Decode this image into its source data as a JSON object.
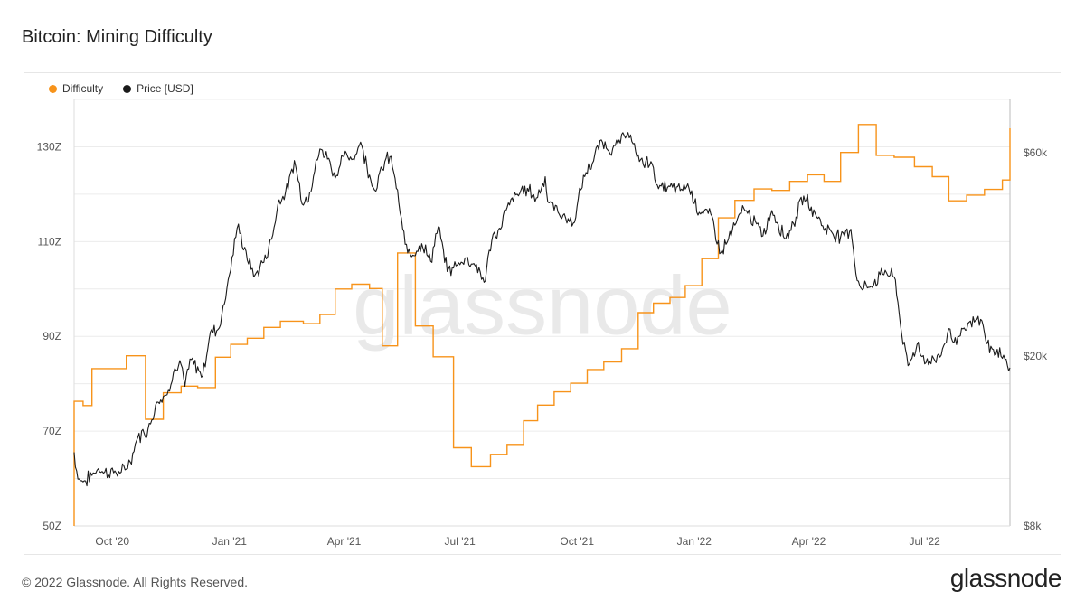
{
  "page": {
    "title": "Bitcoin: Mining Difficulty",
    "footer": "© 2022 Glassnode. All Rights Reserved.",
    "brand": "glassnode",
    "watermark": "glassnode"
  },
  "colors": {
    "difficulty": "#f7931a",
    "price": "#1a1a1a",
    "grid": "#ececec",
    "axis_text": "#555555",
    "watermark": "#e9e9e9"
  },
  "chart_data": {
    "type": "line",
    "title": "Bitcoin: Mining Difficulty",
    "legend_position": "top-left",
    "grid": true,
    "x_start": "2020-09-01",
    "x_end": "2022-09-06",
    "x_ticks": [
      {
        "date": "2020-10-01",
        "label": "Oct '20"
      },
      {
        "date": "2021-01-01",
        "label": "Jan '21"
      },
      {
        "date": "2021-04-01",
        "label": "Apr '21"
      },
      {
        "date": "2021-07-01",
        "label": "Jul '21"
      },
      {
        "date": "2021-10-01",
        "label": "Oct '21"
      },
      {
        "date": "2022-01-01",
        "label": "Jan '22"
      },
      {
        "date": "2022-04-01",
        "label": "Apr '22"
      },
      {
        "date": "2022-07-01",
        "label": "Jul '22"
      }
    ],
    "y_left": {
      "min": 50,
      "max": 140,
      "ticks": [
        {
          "value": 50,
          "label": "50Z"
        },
        {
          "value": 70,
          "label": "70Z"
        },
        {
          "value": 90,
          "label": "90Z"
        },
        {
          "value": 110,
          "label": "110Z"
        },
        {
          "value": 130,
          "label": "130Z"
        }
      ]
    },
    "y_right": {
      "scale": "log",
      "min": 8000,
      "max": 80000,
      "ticks": [
        {
          "value": 8000,
          "label": "$8k"
        },
        {
          "value": 20000,
          "label": "$20k"
        },
        {
          "value": 60000,
          "label": "$60k"
        }
      ]
    },
    "series": [
      {
        "name": "Difficulty",
        "axis": "left",
        "step": true,
        "points": [
          [
            "2020-09-01",
            76.3
          ],
          [
            "2020-09-08",
            75.4
          ],
          [
            "2020-09-15",
            83.2
          ],
          [
            "2020-10-01",
            83.2
          ],
          [
            "2020-10-12",
            85.9
          ],
          [
            "2020-10-27",
            72.5
          ],
          [
            "2020-11-10",
            78.1
          ],
          [
            "2020-11-24",
            79.5
          ],
          [
            "2020-12-07",
            79.2
          ],
          [
            "2020-12-21",
            85.6
          ],
          [
            "2021-01-02",
            88.3
          ],
          [
            "2021-01-15",
            89.6
          ],
          [
            "2021-01-28",
            91.9
          ],
          [
            "2021-02-10",
            93.2
          ],
          [
            "2021-02-28",
            92.7
          ],
          [
            "2021-03-13",
            94.6
          ],
          [
            "2021-03-25",
            100.0
          ],
          [
            "2021-04-07",
            101.0
          ],
          [
            "2021-04-21",
            100.1
          ],
          [
            "2021-05-01",
            88.0
          ],
          [
            "2021-05-13",
            107.6
          ],
          [
            "2021-05-27",
            92.2
          ],
          [
            "2021-06-10",
            85.7
          ],
          [
            "2021-06-26",
            66.5
          ],
          [
            "2021-07-10",
            62.5
          ],
          [
            "2021-07-25",
            65.1
          ],
          [
            "2021-08-07",
            67.2
          ],
          [
            "2021-08-20",
            72.2
          ],
          [
            "2021-08-31",
            75.5
          ],
          [
            "2021-09-13",
            78.3
          ],
          [
            "2021-09-26",
            80.1
          ],
          [
            "2021-10-09",
            83.0
          ],
          [
            "2021-10-22",
            84.6
          ],
          [
            "2021-11-05",
            87.4
          ],
          [
            "2021-11-18",
            95.0
          ],
          [
            "2021-11-30",
            97.0
          ],
          [
            "2021-12-13",
            98.2
          ],
          [
            "2021-12-25",
            100.7
          ],
          [
            "2022-01-07",
            106.4
          ],
          [
            "2022-01-20",
            115.0
          ],
          [
            "2022-02-02",
            118.7
          ],
          [
            "2022-02-17",
            121.1
          ],
          [
            "2022-03-03",
            120.8
          ],
          [
            "2022-03-17",
            122.7
          ],
          [
            "2022-03-31",
            124.1
          ],
          [
            "2022-04-13",
            122.7
          ],
          [
            "2022-04-26",
            128.8
          ],
          [
            "2022-05-10",
            134.7
          ],
          [
            "2022-05-24",
            128.2
          ],
          [
            "2022-06-07",
            127.8
          ],
          [
            "2022-06-23",
            125.8
          ],
          [
            "2022-07-07",
            123.7
          ],
          [
            "2022-07-20",
            118.6
          ],
          [
            "2022-08-03",
            119.8
          ],
          [
            "2022-08-17",
            121.0
          ],
          [
            "2022-08-31",
            123.0
          ],
          [
            "2022-09-06",
            133.9
          ]
        ]
      },
      {
        "name": "Price [USD]",
        "axis": "right",
        "step": false,
        "points": [
          [
            "2020-09-01",
            11900
          ],
          [
            "2020-09-04",
            10300
          ],
          [
            "2020-09-10",
            10200
          ],
          [
            "2020-09-20",
            10900
          ],
          [
            "2020-09-25",
            10700
          ],
          [
            "2020-10-08",
            10700
          ],
          [
            "2020-10-15",
            11300
          ],
          [
            "2020-10-21",
            12900
          ],
          [
            "2020-10-29",
            13500
          ],
          [
            "2020-11-05",
            15600
          ],
          [
            "2020-11-12",
            16200
          ],
          [
            "2020-11-18",
            18300
          ],
          [
            "2020-11-24",
            19100
          ],
          [
            "2020-11-27",
            17000
          ],
          [
            "2020-12-01",
            19700
          ],
          [
            "2020-12-11",
            18000
          ],
          [
            "2020-12-17",
            22800
          ],
          [
            "2020-12-24",
            23300
          ],
          [
            "2020-12-30",
            28900
          ],
          [
            "2021-01-08",
            40800
          ],
          [
            "2021-01-12",
            35500
          ],
          [
            "2021-01-21",
            31000
          ],
          [
            "2021-01-28",
            33200
          ],
          [
            "2021-02-03",
            37600
          ],
          [
            "2021-02-09",
            46500
          ],
          [
            "2021-02-16",
            49200
          ],
          [
            "2021-02-21",
            57500
          ],
          [
            "2021-02-28",
            45200
          ],
          [
            "2021-03-05",
            48500
          ],
          [
            "2021-03-13",
            61200
          ],
          [
            "2021-03-20",
            58200
          ],
          [
            "2021-03-25",
            52300
          ],
          [
            "2021-04-01",
            58800
          ],
          [
            "2021-04-08",
            58000
          ],
          [
            "2021-04-14",
            63500
          ],
          [
            "2021-04-22",
            51700
          ],
          [
            "2021-04-25",
            49000
          ],
          [
            "2021-05-03",
            57200
          ],
          [
            "2021-05-08",
            58800
          ],
          [
            "2021-05-12",
            49500
          ],
          [
            "2021-05-19",
            36600
          ],
          [
            "2021-05-23",
            34600
          ],
          [
            "2021-06-01",
            36700
          ],
          [
            "2021-06-08",
            33400
          ],
          [
            "2021-06-14",
            40200
          ],
          [
            "2021-06-21",
            31600
          ],
          [
            "2021-06-26",
            32200
          ],
          [
            "2021-07-05",
            34000
          ],
          [
            "2021-07-14",
            32800
          ],
          [
            "2021-07-20",
            29800
          ],
          [
            "2021-07-26",
            37300
          ],
          [
            "2021-08-01",
            39900
          ],
          [
            "2021-08-07",
            44600
          ],
          [
            "2021-08-14",
            47800
          ],
          [
            "2021-08-23",
            49500
          ],
          [
            "2021-08-30",
            47000
          ],
          [
            "2021-09-06",
            52700
          ],
          [
            "2021-09-08",
            46000
          ],
          [
            "2021-09-20",
            42800
          ],
          [
            "2021-09-28",
            41000
          ],
          [
            "2021-10-04",
            49100
          ],
          [
            "2021-10-08",
            53900
          ],
          [
            "2021-10-14",
            57400
          ],
          [
            "2021-10-20",
            64300
          ],
          [
            "2021-10-26",
            60500
          ],
          [
            "2021-11-02",
            63000
          ],
          [
            "2021-11-10",
            66900
          ],
          [
            "2021-11-16",
            60400
          ],
          [
            "2021-11-22",
            56300
          ],
          [
            "2021-11-28",
            57200
          ],
          [
            "2021-12-04",
            49400
          ],
          [
            "2021-12-12",
            50100
          ],
          [
            "2021-12-21",
            48900
          ],
          [
            "2021-12-27",
            50700
          ],
          [
            "2022-01-05",
            43500
          ],
          [
            "2022-01-14",
            43100
          ],
          [
            "2022-01-22",
            35000
          ],
          [
            "2022-01-28",
            37700
          ],
          [
            "2022-02-09",
            44400
          ],
          [
            "2022-02-14",
            42600
          ],
          [
            "2022-02-24",
            38300
          ],
          [
            "2022-03-03",
            43900
          ],
          [
            "2022-03-14",
            37800
          ],
          [
            "2022-03-22",
            42400
          ],
          [
            "2022-03-28",
            47500
          ],
          [
            "2022-04-06",
            43200
          ],
          [
            "2022-04-14",
            39900
          ],
          [
            "2022-04-26",
            38100
          ],
          [
            "2022-05-04",
            39700
          ],
          [
            "2022-05-09",
            30100
          ],
          [
            "2022-05-12",
            28900
          ],
          [
            "2022-05-20",
            29200
          ],
          [
            "2022-05-31",
            31800
          ],
          [
            "2022-06-08",
            30200
          ],
          [
            "2022-06-13",
            22500
          ],
          [
            "2022-06-18",
            19000
          ],
          [
            "2022-06-25",
            21300
          ],
          [
            "2022-07-02",
            19300
          ],
          [
            "2022-07-13",
            19900
          ],
          [
            "2022-07-20",
            23200
          ],
          [
            "2022-07-26",
            21300
          ],
          [
            "2022-08-01",
            23300
          ],
          [
            "2022-08-14",
            24400
          ],
          [
            "2022-08-19",
            21400
          ],
          [
            "2022-08-26",
            20200
          ],
          [
            "2022-09-01",
            20100
          ],
          [
            "2022-09-06",
            18800
          ]
        ]
      }
    ]
  }
}
